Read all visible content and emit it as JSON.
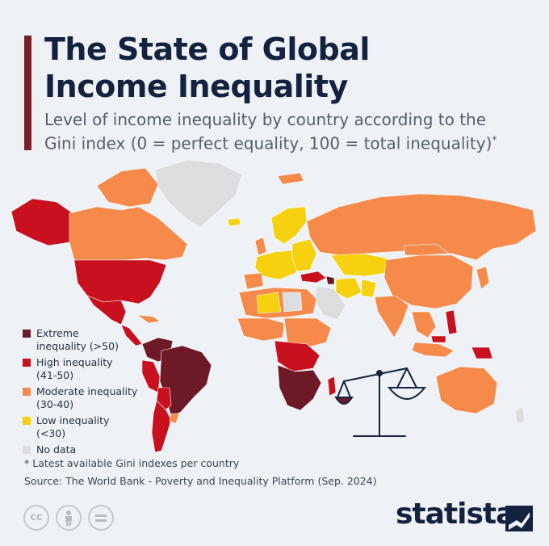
{
  "header": {
    "title_line1": "The State of Global",
    "title_line2": "Income Inequality",
    "subtitle_line1": "Level of income inequality by country according to the",
    "subtitle_line2": "Gini index (0 = perfect equality, 100 = total inequality)",
    "subtitle_mark": "*"
  },
  "legend": [
    {
      "label_line1": "Extreme",
      "label_line2": "inequality (>50)",
      "color": "#6e1a26"
    },
    {
      "label_line1": "High inequality",
      "label_line2": "(41-50)",
      "color": "#c8101e"
    },
    {
      "label_line1": "Moderate inequality",
      "label_line2": "(30-40)",
      "color": "#f58a4b"
    },
    {
      "label_line1": "Low inequality",
      "label_line2": "(<30)",
      "color": "#f6d10f"
    },
    {
      "label_line1": "No data",
      "label_line2": "",
      "color": "#dcdddf"
    }
  ],
  "footer": {
    "footnote": "* Latest available Gini indexes per country",
    "source": "Source: The World Bank - Poverty and Inequality Platform (Sep. 2024)",
    "license_icons": [
      "cc-icon",
      "by-person-icon",
      "equals-icon"
    ],
    "brand": "statista"
  },
  "colors": {
    "extreme": "#6e1a26",
    "high": "#c8101e",
    "moderate": "#f58a4b",
    "low": "#f6d10f",
    "nodata": "#dcdddf",
    "title": "#13223f",
    "accent": "#7a1e28"
  }
}
